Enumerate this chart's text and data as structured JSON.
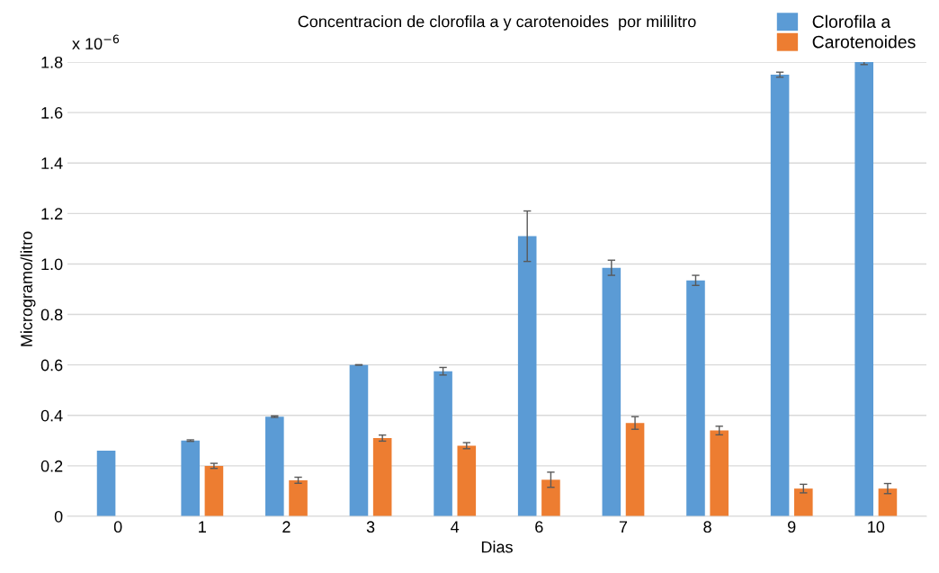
{
  "chart_data": {
    "type": "bar",
    "title": "Concentracion de clorofila a y carotenoides  por mililitro",
    "xlabel": "Dias",
    "ylabel": "Microgramo/litro",
    "categories": [
      "0",
      "1",
      "2",
      "3",
      "4",
      "6",
      "7",
      "8",
      "9",
      "10"
    ],
    "series": [
      {
        "name": "Clorofila a",
        "color": "#5b9bd5",
        "values": [
          0.26,
          0.3,
          0.395,
          0.6,
          0.575,
          1.11,
          0.985,
          0.935,
          1.75,
          1.8
        ],
        "errors": [
          null,
          0.003,
          0.003,
          0.001,
          0.015,
          0.1,
          0.03,
          0.02,
          0.01,
          0.01
        ]
      },
      {
        "name": "Carotenoides",
        "color": "#ed7d31",
        "values": [
          null,
          0.2,
          0.143,
          0.31,
          0.28,
          0.145,
          0.37,
          0.34,
          0.11,
          0.11
        ],
        "errors": [
          null,
          0.01,
          0.012,
          0.012,
          0.012,
          0.03,
          0.025,
          0.017,
          0.017,
          0.02
        ]
      }
    ],
    "ylim": [
      0,
      1.8
    ],
    "yticks": [
      0,
      0.2,
      0.4,
      0.6,
      0.8,
      {
        "value": 1,
        "label": "1.0"
      },
      1.2,
      1.4,
      1.6,
      1.8
    ],
    "grid": "y",
    "legend": "top right",
    "annotations": [
      "x 10$^{−6}$"
    ]
  }
}
